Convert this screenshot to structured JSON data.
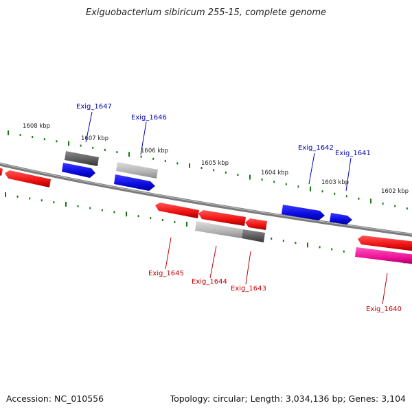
{
  "title": "Exiguobacterium sibiricum 255-15, complete genome",
  "footer": {
    "accession": "Accession: NC_010556",
    "summary": "Topology: circular; Length: 3,034,136 bp; Genes: 3,104"
  },
  "colors": {
    "forward_gene": "#0a0ae0",
    "reverse_gene": "#ee1111",
    "pseudo_dark": "#5a5a5a",
    "pseudo_light": "#b4b4b4",
    "rna_pink": "#ee1199",
    "ruler_green": "#117711",
    "backbone": "#7a7a7a"
  },
  "ruler_labels": [
    "1608 kbp",
    "1607 kbp",
    "1606 kbp",
    "1605 kbp",
    "1604 kbp",
    "1603 kbp",
    "1602 kbp"
  ],
  "gene_labels": {
    "forward": [
      "Exig_1647",
      "Exig_1646",
      "Exig_1642",
      "Exig_1641"
    ],
    "reverse": [
      "Exig_1645",
      "Exig_1644",
      "Exig_1643",
      "Exig_1640"
    ]
  }
}
